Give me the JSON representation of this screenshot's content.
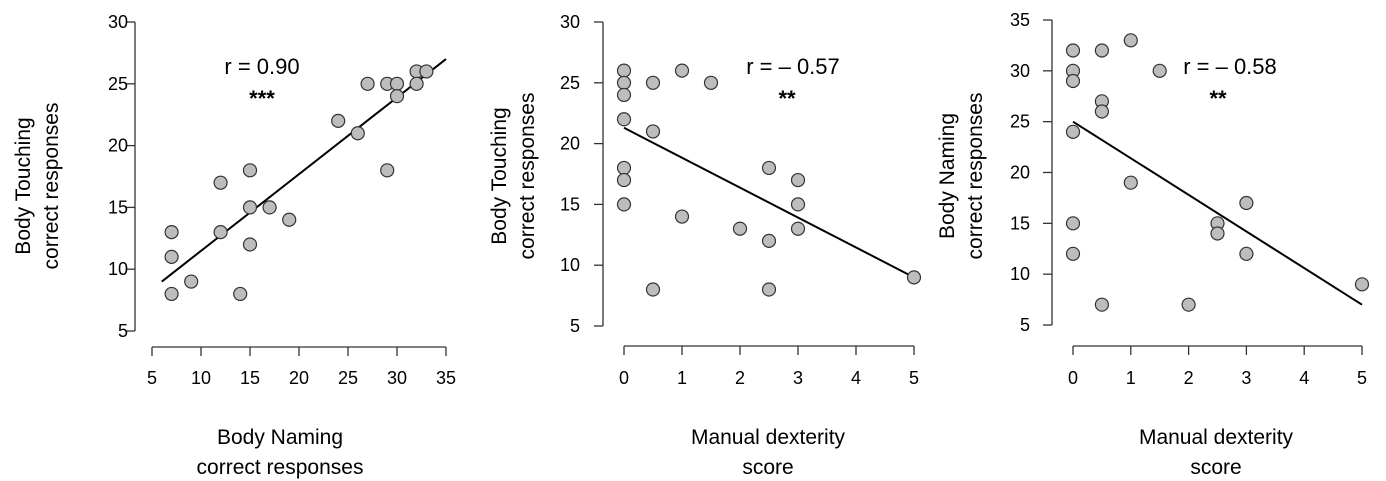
{
  "chart_data": [
    {
      "type": "scatter",
      "xlabel": [
        "Body Naming",
        "correct responses"
      ],
      "ylabel": [
        "Body Touching",
        "correct responses"
      ],
      "xlim": [
        5,
        35
      ],
      "ylim": [
        5,
        30
      ],
      "xticks": [
        5,
        10,
        15,
        20,
        25,
        30,
        35
      ],
      "yticks": [
        5,
        10,
        15,
        20,
        25,
        30
      ],
      "annotation": "r = 0.90",
      "significance": "***",
      "fit_line": [
        [
          6,
          9
        ],
        [
          35,
          27
        ]
      ],
      "points": [
        [
          7,
          13
        ],
        [
          7,
          11
        ],
        [
          7,
          8
        ],
        [
          9,
          9
        ],
        [
          12,
          17
        ],
        [
          12,
          13
        ],
        [
          14,
          8
        ],
        [
          15,
          18
        ],
        [
          15,
          15
        ],
        [
          15,
          12
        ],
        [
          17,
          15
        ],
        [
          19,
          14
        ],
        [
          24,
          22
        ],
        [
          26,
          21
        ],
        [
          27,
          25
        ],
        [
          29,
          25
        ],
        [
          29,
          18
        ],
        [
          30,
          25
        ],
        [
          30,
          24
        ],
        [
          32,
          26
        ],
        [
          32,
          25
        ],
        [
          33,
          26
        ]
      ]
    },
    {
      "type": "scatter",
      "xlabel": [
        "Manual dexterity",
        "score"
      ],
      "ylabel": [
        "Body Touching",
        "correct responses"
      ],
      "xlim": [
        0,
        5
      ],
      "ylim": [
        5,
        30
      ],
      "xticks": [
        0,
        1,
        2,
        3,
        4,
        5
      ],
      "yticks": [
        5,
        10,
        15,
        20,
        25,
        30
      ],
      "annotation": "r = – 0.57",
      "significance": "**",
      "fit_line": [
        [
          0,
          21.3
        ],
        [
          5,
          9
        ]
      ],
      "points": [
        [
          0,
          26
        ],
        [
          0,
          25
        ],
        [
          0,
          24
        ],
        [
          0,
          22
        ],
        [
          0,
          18
        ],
        [
          0,
          17
        ],
        [
          0,
          15
        ],
        [
          0.5,
          25
        ],
        [
          0.5,
          21
        ],
        [
          0.5,
          8
        ],
        [
          1,
          26
        ],
        [
          1,
          14
        ],
        [
          1.5,
          25
        ],
        [
          2,
          13
        ],
        [
          2.5,
          18
        ],
        [
          2.5,
          12
        ],
        [
          2.5,
          8
        ],
        [
          3,
          17
        ],
        [
          3,
          15
        ],
        [
          3,
          13
        ],
        [
          5,
          9
        ]
      ]
    },
    {
      "type": "scatter",
      "xlabel": [
        "Manual dexterity",
        "score"
      ],
      "ylabel": [
        "Body Naming",
        "correct responses"
      ],
      "xlim": [
        0,
        5
      ],
      "ylim": [
        5,
        35
      ],
      "xticks": [
        0,
        1,
        2,
        3,
        4,
        5
      ],
      "yticks": [
        5,
        10,
        15,
        20,
        25,
        30,
        35
      ],
      "annotation": "r = – 0.58",
      "significance": "**",
      "fit_line": [
        [
          0,
          25
        ],
        [
          5,
          7
        ]
      ],
      "points": [
        [
          0,
          32
        ],
        [
          0,
          30
        ],
        [
          0,
          29
        ],
        [
          0,
          24
        ],
        [
          0,
          15
        ],
        [
          0,
          12
        ],
        [
          0.5,
          32
        ],
        [
          0.5,
          27
        ],
        [
          0.5,
          26
        ],
        [
          0.5,
          7
        ],
        [
          1,
          33
        ],
        [
          1,
          19
        ],
        [
          1.5,
          30
        ],
        [
          2,
          7
        ],
        [
          2.5,
          15
        ],
        [
          2.5,
          14
        ],
        [
          3,
          17
        ],
        [
          3,
          12
        ],
        [
          5,
          9
        ]
      ]
    }
  ]
}
